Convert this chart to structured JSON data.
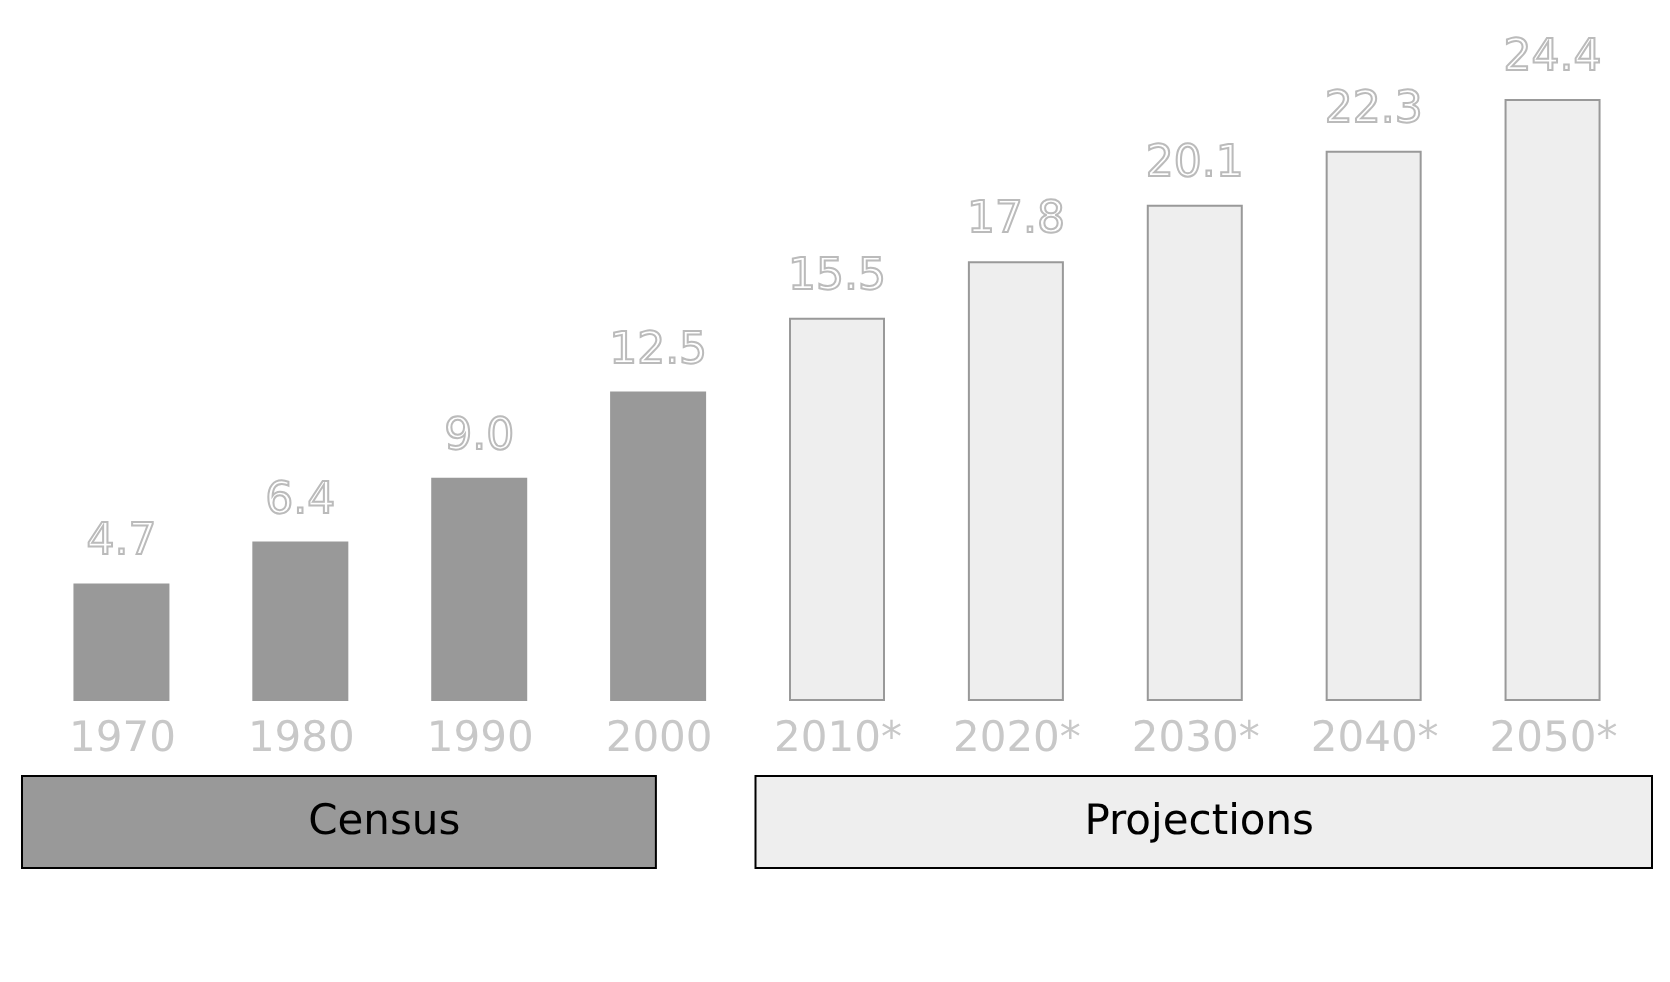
{
  "chart_data": {
    "type": "bar",
    "categories": [
      "1970",
      "1980",
      "1990",
      "2000",
      "2010*",
      "2020*",
      "2030*",
      "2040*",
      "2050*"
    ],
    "series": [
      {
        "name": "Census",
        "color": "#999999",
        "values": [
          4.7,
          6.4,
          9.0,
          12.5,
          null,
          null,
          null,
          null,
          null
        ],
        "value_labels": [
          "4.7",
          "6.4",
          "9.0",
          "12.5",
          null,
          null,
          null,
          null,
          null
        ]
      },
      {
        "name": "Projections",
        "color": "#eeeeee",
        "values": [
          null,
          null,
          null,
          null,
          15.5,
          17.8,
          20.1,
          22.3,
          24.4
        ],
        "value_labels": [
          null,
          null,
          null,
          null,
          "15.5",
          "17.8",
          "20.1",
          "22.3",
          "24.4"
        ]
      }
    ],
    "legend": "bottom",
    "grid": false,
    "tick_labels": "x"
  }
}
